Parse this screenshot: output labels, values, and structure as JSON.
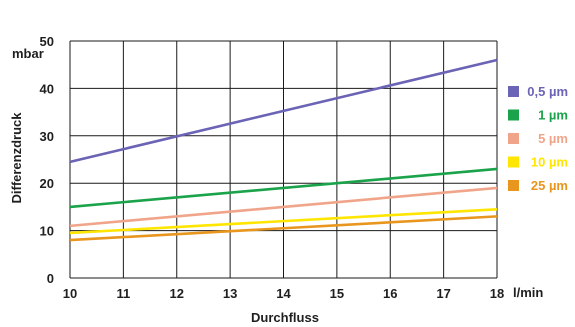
{
  "chart_data": {
    "type": "line",
    "xlabel": "Durchfluss",
    "xunit": "l/min",
    "ylabel": "Differenzdruck",
    "yunit": "mbar",
    "xlim": [
      10,
      18
    ],
    "ylim": [
      0,
      50
    ],
    "xticks": [
      10,
      11,
      12,
      13,
      14,
      15,
      16,
      17,
      18
    ],
    "yticks": [
      0,
      10,
      20,
      30,
      40,
      50
    ],
    "grid": true,
    "legend_position": "right",
    "series": [
      {
        "name": "0,5 µm",
        "color": "#6b63b5",
        "x": [
          10,
          18
        ],
        "y": [
          24.5,
          46
        ]
      },
      {
        "name": "1 µm",
        "color": "#1aa34a",
        "x": [
          10,
          18
        ],
        "y": [
          15,
          23
        ]
      },
      {
        "name": "5 µm",
        "color": "#f0a58a",
        "x": [
          10,
          18
        ],
        "y": [
          11,
          19
        ]
      },
      {
        "name": "10 µm",
        "color": "#ffe600",
        "x": [
          10,
          18
        ],
        "y": [
          9.5,
          14.5
        ]
      },
      {
        "name": "25 µm",
        "color": "#e8961e",
        "x": [
          10,
          18
        ],
        "y": [
          8,
          13
        ]
      }
    ]
  }
}
